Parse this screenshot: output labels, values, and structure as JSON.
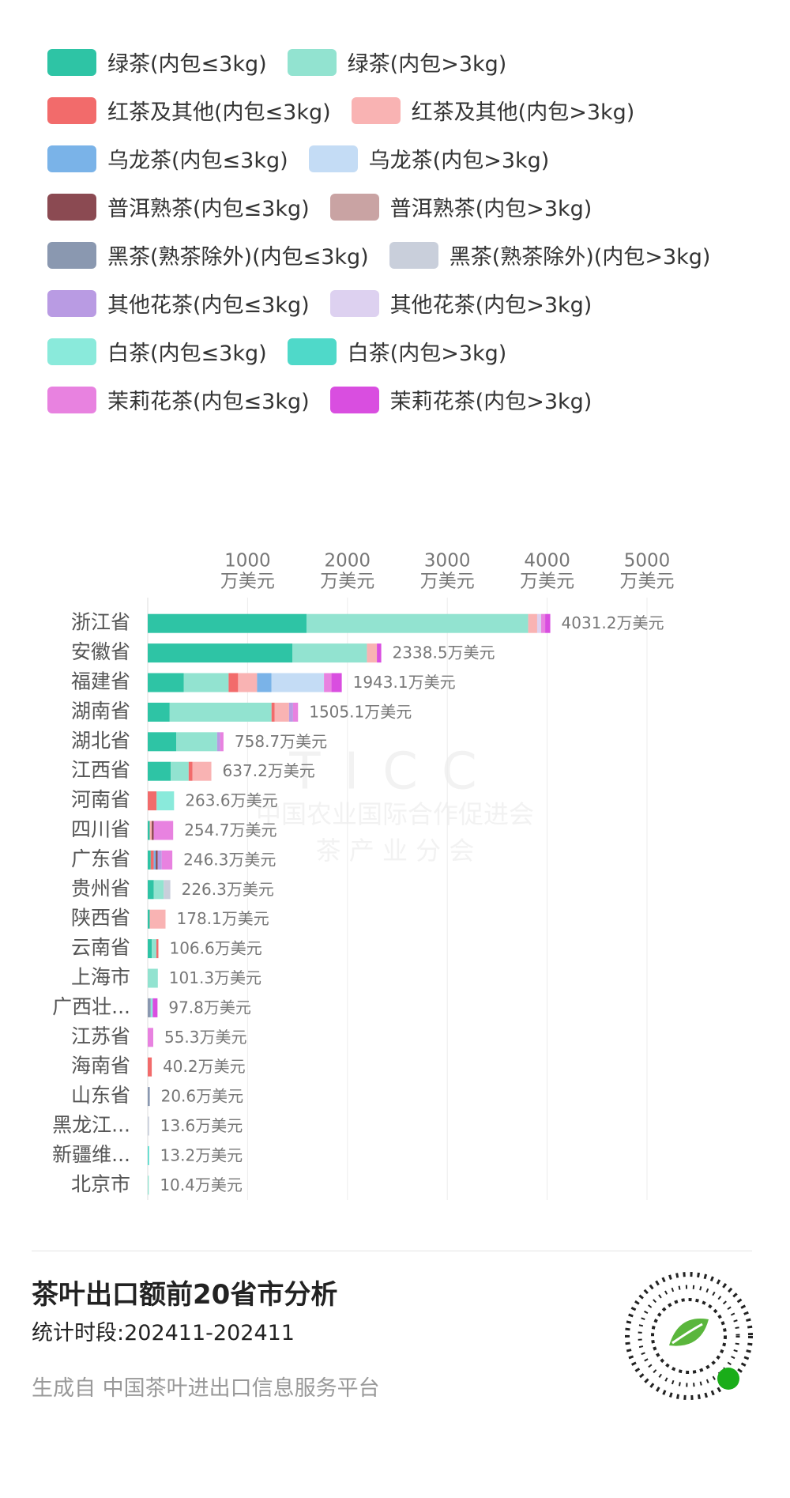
{
  "chart_data": {
    "type": "stacked-barh",
    "title": "茶叶出口额前20省市分析",
    "subtitle": "统计时段:202411-202411",
    "source": "生成自 中国茶叶进出口信息服务平台",
    "watermark": [
      "TICC",
      "中国农业国际合作促进会",
      "茶 产 业 分 会"
    ],
    "categories": [
      "浙江省",
      "安徽省",
      "福建省",
      "湖南省",
      "湖北省",
      "江西省",
      "河南省",
      "四川省",
      "广东省",
      "贵州省",
      "陕西省",
      "云南省",
      "上海市",
      "广西壮...",
      "江苏省",
      "海南省",
      "山东省",
      "黑龙江...",
      "新疆维...",
      "北京市"
    ],
    "totals": [
      4031.2,
      2338.5,
      1943.1,
      1505.1,
      758.7,
      637.2,
      263.6,
      254.7,
      246.3,
      226.3,
      178.1,
      106.6,
      101.3,
      97.8,
      55.3,
      40.2,
      20.6,
      13.6,
      13.2,
      10.4
    ],
    "total_labels": [
      "4031.2万美元",
      "2338.5万美元",
      "1943.1万美元",
      "1505.1万美元",
      "758.7万美元",
      "637.2万美元",
      "263.6万美元",
      "254.7万美元",
      "246.3万美元",
      "226.3万美元",
      "178.1万美元",
      "106.6万美元",
      "101.3万美元",
      "97.8万美元",
      "55.3万美元",
      "40.2万美元",
      "20.6万美元",
      "13.6万美元",
      "13.2万美元",
      "10.4万美元"
    ],
    "xlim": [
      0,
      5000
    ],
    "xticks": [
      1000,
      2000,
      3000,
      4000,
      5000
    ],
    "xtick_unit": "万美元",
    "grid": true,
    "series": [
      {
        "name": "绿茶(内包≤3kg)",
        "color": "#2ec4a5",
        "values": [
          1590,
          1450,
          360,
          220,
          285,
          230,
          0,
          20,
          30,
          60,
          20,
          40,
          0,
          0,
          0,
          0,
          0,
          0,
          0,
          0
        ]
      },
      {
        "name": "绿茶(内包>3kg)",
        "color": "#92e3d0",
        "values": [
          2220,
          745,
          450,
          1020,
          410,
          180,
          0,
          0,
          0,
          100,
          0,
          46.6,
          101.3,
          0,
          0,
          0,
          0,
          0,
          0,
          10.4
        ]
      },
      {
        "name": "红茶及其他(内包≤3kg)",
        "color": "#f26b6b",
        "values": [
          0,
          0,
          95,
          30,
          0,
          37.2,
          88.6,
          0,
          30,
          0,
          0,
          20,
          0,
          0,
          0,
          40.2,
          0,
          0,
          0,
          0
        ]
      },
      {
        "name": "红茶及其他(内包>3kg)",
        "color": "#f9b3b3",
        "values": [
          90,
          100,
          190,
          145,
          0,
          190,
          0,
          20,
          0,
          0,
          158.1,
          0,
          0,
          0,
          0,
          0,
          0,
          0,
          0,
          0
        ]
      },
      {
        "name": "乌龙茶(内包≤3kg)",
        "color": "#7ab3e8",
        "values": [
          0,
          0,
          145,
          0,
          0,
          0,
          0,
          0,
          20,
          0,
          0,
          0,
          0,
          0,
          0,
          0,
          0,
          0,
          0,
          0
        ]
      },
      {
        "name": "乌龙茶(内包>3kg)",
        "color": "#c4dcf5",
        "values": [
          0,
          0,
          525,
          0,
          0,
          0,
          0,
          0,
          0,
          0,
          0,
          0,
          0,
          0,
          0,
          0,
          0,
          0,
          0,
          0
        ]
      },
      {
        "name": "普洱熟茶(内包≤3kg)",
        "color": "#8b4a52",
        "values": [
          0,
          0,
          0,
          0,
          0,
          0,
          0,
          20,
          20,
          0,
          0,
          0,
          0,
          0,
          0,
          0,
          0,
          0,
          0,
          0
        ]
      },
      {
        "name": "普洱熟茶(内包>3kg)",
        "color": "#c9a3a3",
        "values": [
          0,
          0,
          0,
          0,
          0,
          0,
          0,
          0,
          0,
          0,
          0,
          0,
          0,
          0,
          0,
          0,
          0,
          0,
          0,
          0
        ]
      },
      {
        "name": "黑茶(熟茶除外)(内包≤3kg)",
        "color": "#8a98b0",
        "values": [
          0,
          0,
          0,
          0,
          0,
          0,
          0,
          0,
          0,
          0,
          0,
          0,
          0,
          30,
          0,
          0,
          20.6,
          0,
          0,
          0
        ]
      },
      {
        "name": "黑茶(熟茶除外)(内包>3kg)",
        "color": "#c9cfdb",
        "values": [
          0,
          0,
          0,
          0,
          0,
          0,
          0,
          0,
          0,
          66.3,
          0,
          0,
          0,
          0,
          0,
          0,
          0,
          13.6,
          0,
          0
        ]
      },
      {
        "name": "其他花茶(内包≤3kg)",
        "color": "#b99be3",
        "values": [
          0,
          0,
          0,
          40,
          30,
          0,
          0,
          0,
          40,
          0,
          0,
          0,
          0,
          0,
          0,
          0,
          0,
          0,
          0,
          0
        ]
      },
      {
        "name": "其他花茶(内包>3kg)",
        "color": "#ddd1f0",
        "values": [
          40,
          0,
          0,
          0,
          0,
          0,
          0,
          0,
          0,
          0,
          0,
          0,
          0,
          0,
          0,
          0,
          0,
          0,
          0,
          0
        ]
      },
      {
        "name": "白茶(内包≤3kg)",
        "color": "#8aeadb",
        "values": [
          0,
          0,
          0,
          0,
          0,
          0,
          175,
          0,
          0,
          0,
          0,
          0,
          0,
          20,
          0,
          0,
          0,
          0,
          0,
          0
        ]
      },
      {
        "name": "白茶(内包>3kg)",
        "color": "#4fd9c9",
        "values": [
          0,
          0,
          0,
          0,
          0,
          0,
          0,
          0,
          0,
          0,
          0,
          0,
          0,
          0,
          0,
          0,
          0,
          0,
          13.2,
          0
        ]
      },
      {
        "name": "茉莉花茶(内包≤3kg)",
        "color": "#e882e0",
        "values": [
          40,
          0,
          75,
          50.1,
          33.7,
          0,
          0,
          194.7,
          106.3,
          0,
          0,
          0,
          0,
          0,
          55.3,
          0,
          0,
          0,
          0,
          0
        ]
      },
      {
        "name": "茉莉花茶(内包>3kg)",
        "color": "#d94ee0",
        "values": [
          51.2,
          43.5,
          103.1,
          0,
          0,
          0,
          0,
          0,
          0,
          0,
          0,
          0,
          0,
          47.8,
          0,
          0,
          0,
          0,
          0,
          0
        ]
      }
    ]
  }
}
